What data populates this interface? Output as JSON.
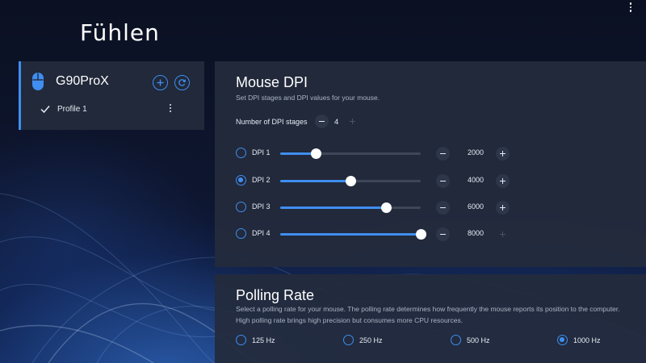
{
  "app": {
    "logo": "Fühlen"
  },
  "device": {
    "name": "G90ProX",
    "profiles": [
      {
        "label": "Profile 1",
        "active": true
      }
    ]
  },
  "dpi_section": {
    "title": "Mouse DPI",
    "description": "Set DPI stages and DPI values for your mouse.",
    "stages_label": "Number of DPI stages",
    "stages_value": "4",
    "slider_max": 8000,
    "stages": [
      {
        "label": "DPI 1",
        "value": "2000",
        "selected": false,
        "plus_enabled": true
      },
      {
        "label": "DPI 2",
        "value": "4000",
        "selected": true,
        "plus_enabled": true
      },
      {
        "label": "DPI 3",
        "value": "6000",
        "selected": false,
        "plus_enabled": true
      },
      {
        "label": "DPI 4",
        "value": "8000",
        "selected": false,
        "plus_enabled": false
      }
    ]
  },
  "polling_section": {
    "title": "Polling Rate",
    "description": "Select a polling rate for your mouse. The polling rate determines how frequently the mouse reports its position to the computer. High polling rate brings high precision but consumes more CPU resources.",
    "options": [
      {
        "label": "125 Hz",
        "selected": false
      },
      {
        "label": "250 Hz",
        "selected": false
      },
      {
        "label": "500 Hz",
        "selected": false
      },
      {
        "label": "1000 Hz",
        "selected": true
      }
    ]
  },
  "colors": {
    "accent": "#3f8ef0",
    "panel": "#242b3c",
    "background": "#0b1122"
  },
  "icons": {
    "window_menu": "kebab-vertical-icon",
    "mouse": "mouse-icon",
    "add": "plus-circle-icon",
    "reset": "refresh-circle-icon",
    "check": "check-icon",
    "profile_menu": "kebab-vertical-icon"
  }
}
